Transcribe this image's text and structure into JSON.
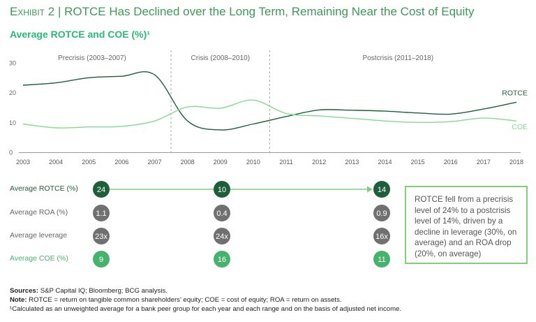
{
  "header": {
    "exhibit": "Exhibit 2",
    "divider": "|",
    "title": "ROTCE Has Declined over the Long Term, Remaining Near the Cost of Equity",
    "subtitle": "Average ROTCE and COE (%)¹"
  },
  "chart_data": {
    "type": "line",
    "x": [
      2003,
      2004,
      2005,
      2006,
      2007,
      2008,
      2009,
      2010,
      2011,
      2012,
      2013,
      2014,
      2015,
      2016,
      2017,
      2018
    ],
    "series": [
      {
        "name": "ROTCE",
        "color": "#1e5e3b",
        "values": [
          22.5,
          23.3,
          25,
          25.5,
          26,
          10.5,
          7.5,
          9.5,
          12,
          14.2,
          14.1,
          13.8,
          13.2,
          12.8,
          14.5,
          16.8
        ]
      },
      {
        "name": "COE",
        "color": "#85d98f",
        "values": [
          9.5,
          8.2,
          8.5,
          8.7,
          10.5,
          15.2,
          14.8,
          17.5,
          13,
          12.2,
          11.4,
          10.5,
          10,
          10.3,
          11.5,
          10.5
        ]
      }
    ],
    "ylim": [
      0,
      30
    ],
    "yticks": [
      0,
      10,
      20,
      30
    ],
    "periods": [
      {
        "label": "Precrisis (2003–2007)"
      },
      {
        "label": "Crisis (2008–2010)"
      },
      {
        "label": "Postcrisis (2011–2018)"
      }
    ],
    "period_boundaries": [
      2007.5,
      2010.5
    ],
    "title": "Average ROTCE and COE (%)¹",
    "xlabel": "",
    "ylabel": ""
  },
  "summary": {
    "columns": [
      "Precrisis",
      "Crisis",
      "Postcrisis"
    ],
    "rows": [
      {
        "label": "Average ROTCE (%)",
        "values": [
          "24",
          "10",
          "14"
        ],
        "color": "#1e5e3b",
        "label_color": "#1e5e3b"
      },
      {
        "label": "Average ROA (%)",
        "values": [
          "1.1",
          "0.4",
          "0.9"
        ],
        "color": "#707070",
        "label_color": "#666666"
      },
      {
        "label": "Average leverage",
        "values": [
          "23x",
          "24x",
          "16x"
        ],
        "color": "#707070",
        "label_color": "#666666"
      },
      {
        "label": "Average COE (%)",
        "values": [
          "9",
          "16",
          "11"
        ],
        "color": "#45b36b",
        "label_color": "#45b36b"
      }
    ],
    "arrow_color": "#7ed07c"
  },
  "callout": "ROTCE fell from a precrisis level of 24% to a postcrisis level of 14%, driven by a decline in leverage (30%, on average) and an ROA drop (20%, on average)",
  "footer": {
    "sources_label": "Sources:",
    "sources_text": " S&P Capital IQ; Bloomberg; BCG analysis.",
    "note_label": "Note:",
    "note_text": " ROTCE = return on tangible common shareholders’ equity; COE = cost of equity; ROA = return on assets.",
    "footnote": "¹Calculated as an unweighted average for a bank peer group for each year and each range and on the basis of adjusted net income."
  }
}
